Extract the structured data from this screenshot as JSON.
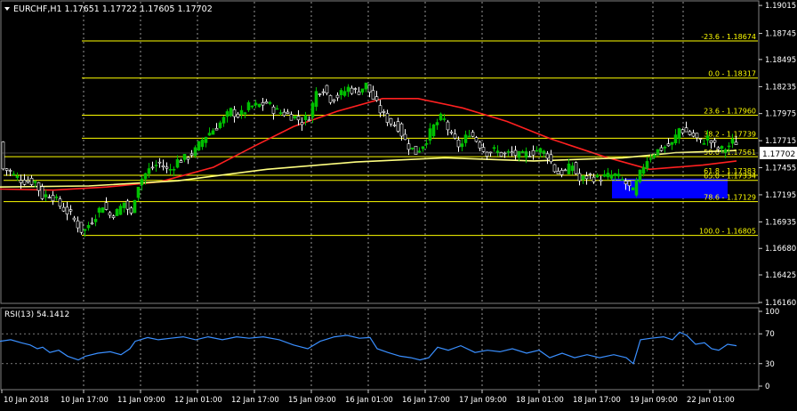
{
  "header": {
    "symbol_line": "EURCHF,H1  1.17651 1.17722 1.17605 1.17702",
    "menu_icon": "triangle-down-icon"
  },
  "current_price": "1.17702",
  "price_axis": {
    "ticks": [
      "1.19015",
      "1.18745",
      "1.18495",
      "1.18235",
      "1.17975",
      "1.17715",
      "1.17455",
      "1.17195",
      "1.16935",
      "1.16680",
      "1.16425",
      "1.16160"
    ]
  },
  "fibonacci_levels": [
    {
      "label": "-23.6 - 1.18674",
      "price": 1.18674
    },
    {
      "label": "0.0 - 1.18317",
      "price": 1.18317
    },
    {
      "label": "23.6 - 1.17960",
      "price": 1.1796
    },
    {
      "label": "38.2 - 1.17739",
      "price": 1.17739
    },
    {
      "label": "50.0 - 1.17561",
      "price": 1.17561
    },
    {
      "label": "61.8 - 1.17383",
      "price": 1.17383
    },
    {
      "label": "65.0 - 1.17334",
      "price": 1.17334
    },
    {
      "label": "78.6 - 1.17129",
      "price": 1.17129
    },
    {
      "label": "100.0 - 1.16805",
      "price": 1.16805
    }
  ],
  "rsi": {
    "label": "RSI(13) 54.1412",
    "ticks": [
      "100",
      "70",
      "30",
      "0"
    ],
    "levels": [
      70,
      30
    ]
  },
  "time_axis": {
    "labels": [
      "10 Jan 2018",
      "10 Jan 17:00",
      "11 Jan 09:00",
      "12 Jan 01:00",
      "12 Jan 17:00",
      "15 Jan 09:00",
      "16 Jan 01:00",
      "16 Jan 17:00",
      "17 Jan 09:00",
      "18 Jan 01:00",
      "18 Jan 17:00",
      "19 Jan 09:00",
      "22 Jan 01:00"
    ]
  },
  "colors": {
    "background": "#000000",
    "fib_line": "#ffff00",
    "bull_candle": "#00c000",
    "bear_candle": "#ffffff",
    "ma_red": "#ff2020",
    "ma_yellow": "#ffff80",
    "zone_blue": "#0000ff",
    "rsi_line": "#3a8fff",
    "grid": "#ffffff",
    "axis_text": "#ffffff"
  },
  "chart_data": {
    "type": "candlestick",
    "symbol": "EURCHF",
    "timeframe": "H1",
    "ohlc_current": {
      "open": 1.17651,
      "high": 1.17722,
      "low": 1.17605,
      "close": 1.17702
    },
    "y_range": [
      1.1616,
      1.1905
    ],
    "path": [
      [
        0,
        1.1745
      ],
      [
        8,
        1.1743
      ],
      [
        14,
        1.1738
      ],
      [
        24,
        1.1733
      ],
      [
        38,
        1.1732
      ],
      [
        46,
        1.1718
      ],
      [
        56,
        1.172
      ],
      [
        66,
        1.1709
      ],
      [
        78,
        1.17
      ],
      [
        92,
        1.1683
      ],
      [
        104,
        1.1698
      ],
      [
        114,
        1.171
      ],
      [
        122,
        1.17
      ],
      [
        130,
        1.1703
      ],
      [
        138,
        1.1712
      ],
      [
        146,
        1.17
      ],
      [
        152,
        1.1727
      ],
      [
        160,
        1.1738
      ],
      [
        168,
        1.1745
      ],
      [
        178,
        1.175
      ],
      [
        188,
        1.1742
      ],
      [
        198,
        1.1752
      ],
      [
        208,
        1.1755
      ],
      [
        218,
        1.1762
      ],
      [
        228,
        1.1775
      ],
      [
        238,
        1.1782
      ],
      [
        248,
        1.179
      ],
      [
        258,
        1.18
      ],
      [
        268,
        1.1795
      ],
      [
        278,
        1.1804
      ],
      [
        288,
        1.1805
      ],
      [
        298,
        1.1808
      ],
      [
        308,
        1.18
      ],
      [
        318,
        1.1798
      ],
      [
        328,
        1.1795
      ],
      [
        338,
        1.179
      ],
      [
        346,
        1.1795
      ],
      [
        354,
        1.1818
      ],
      [
        362,
        1.1822
      ],
      [
        370,
        1.1812
      ],
      [
        380,
        1.1815
      ],
      [
        390,
        1.1822
      ],
      [
        400,
        1.1818
      ],
      [
        410,
        1.1825
      ],
      [
        418,
        1.1812
      ],
      [
        426,
        1.18
      ],
      [
        436,
        1.179
      ],
      [
        446,
        1.1785
      ],
      [
        456,
        1.1768
      ],
      [
        466,
        1.176
      ],
      [
        476,
        1.177
      ],
      [
        486,
        1.1785
      ],
      [
        496,
        1.1795
      ],
      [
        506,
        1.1775
      ],
      [
        516,
        1.1765
      ],
      [
        526,
        1.178
      ],
      [
        536,
        1.177
      ],
      [
        544,
        1.176
      ],
      [
        554,
        1.1762
      ],
      [
        564,
        1.1758
      ],
      [
        574,
        1.176
      ],
      [
        584,
        1.1756
      ],
      [
        594,
        1.176
      ],
      [
        604,
        1.1763
      ],
      [
        614,
        1.1758
      ],
      [
        624,
        1.174
      ],
      [
        634,
        1.1742
      ],
      [
        642,
        1.1748
      ],
      [
        650,
        1.1733
      ],
      [
        660,
        1.1738
      ],
      [
        670,
        1.1735
      ],
      [
        680,
        1.1737
      ],
      [
        690,
        1.1738
      ],
      [
        700,
        1.1732
      ],
      [
        710,
        1.1722
      ],
      [
        716,
        1.1735
      ],
      [
        724,
        1.1752
      ],
      [
        734,
        1.176
      ],
      [
        744,
        1.1765
      ],
      [
        754,
        1.1768
      ],
      [
        762,
        1.1783
      ],
      [
        770,
        1.178
      ],
      [
        778,
        1.1776
      ],
      [
        786,
        1.177
      ],
      [
        794,
        1.1774
      ],
      [
        800,
        1.1768
      ],
      [
        808,
        1.1762
      ],
      [
        816,
        1.1765
      ],
      [
        822,
        1.177
      ],
      [
        828,
        1.177
      ]
    ],
    "moving_averages": [
      {
        "color": "#ff2020",
        "points": [
          [
            0,
            1.1725
          ],
          [
            60,
            1.1724
          ],
          [
            120,
            1.1727
          ],
          [
            180,
            1.1732
          ],
          [
            240,
            1.1746
          ],
          [
            290,
            1.1768
          ],
          [
            330,
            1.1785
          ],
          [
            380,
            1.18
          ],
          [
            430,
            1.1812
          ],
          [
            470,
            1.1812
          ],
          [
            520,
            1.1803
          ],
          [
            570,
            1.179
          ],
          [
            620,
            1.1773
          ],
          [
            680,
            1.1756
          ],
          [
            730,
            1.1744
          ],
          [
            790,
            1.1748
          ],
          [
            828,
            1.1752
          ]
        ]
      },
      {
        "color": "#ffff80",
        "points": [
          [
            0,
            1.1727
          ],
          [
            100,
            1.1728
          ],
          [
            200,
            1.1733
          ],
          [
            300,
            1.1744
          ],
          [
            400,
            1.1751
          ],
          [
            500,
            1.1755
          ],
          [
            600,
            1.1752
          ],
          [
            700,
            1.1755
          ],
          [
            760,
            1.176
          ],
          [
            828,
            1.1762
          ]
        ]
      }
    ],
    "zone": {
      "x0": 688,
      "x1": 818,
      "top": 1.1735,
      "bottom": 1.1716
    },
    "rsi_values": [
      [
        0,
        60
      ],
      [
        12,
        62
      ],
      [
        24,
        58
      ],
      [
        34,
        55
      ],
      [
        42,
        50
      ],
      [
        48,
        52
      ],
      [
        56,
        45
      ],
      [
        66,
        48
      ],
      [
        76,
        40
      ],
      [
        88,
        35
      ],
      [
        96,
        40
      ],
      [
        110,
        44
      ],
      [
        124,
        46
      ],
      [
        136,
        42
      ],
      [
        146,
        50
      ],
      [
        152,
        60
      ],
      [
        166,
        65
      ],
      [
        178,
        62
      ],
      [
        192,
        64
      ],
      [
        206,
        66
      ],
      [
        220,
        62
      ],
      [
        234,
        66
      ],
      [
        250,
        62
      ],
      [
        266,
        66
      ],
      [
        280,
        64
      ],
      [
        296,
        66
      ],
      [
        314,
        62
      ],
      [
        330,
        55
      ],
      [
        346,
        50
      ],
      [
        360,
        60
      ],
      [
        376,
        66
      ],
      [
        390,
        68
      ],
      [
        404,
        64
      ],
      [
        416,
        65
      ],
      [
        424,
        50
      ],
      [
        436,
        45
      ],
      [
        450,
        40
      ],
      [
        462,
        38
      ],
      [
        472,
        35
      ],
      [
        482,
        38
      ],
      [
        492,
        52
      ],
      [
        504,
        48
      ],
      [
        518,
        54
      ],
      [
        534,
        45
      ],
      [
        548,
        48
      ],
      [
        562,
        46
      ],
      [
        576,
        50
      ],
      [
        592,
        44
      ],
      [
        606,
        48
      ],
      [
        618,
        38
      ],
      [
        632,
        44
      ],
      [
        646,
        38
      ],
      [
        660,
        42
      ],
      [
        674,
        38
      ],
      [
        690,
        42
      ],
      [
        704,
        38
      ],
      [
        712,
        30
      ],
      [
        720,
        62
      ],
      [
        732,
        64
      ],
      [
        746,
        66
      ],
      [
        756,
        62
      ],
      [
        764,
        72
      ],
      [
        772,
        68
      ],
      [
        782,
        56
      ],
      [
        792,
        58
      ],
      [
        800,
        50
      ],
      [
        808,
        48
      ],
      [
        818,
        56
      ],
      [
        828,
        54
      ]
    ]
  }
}
